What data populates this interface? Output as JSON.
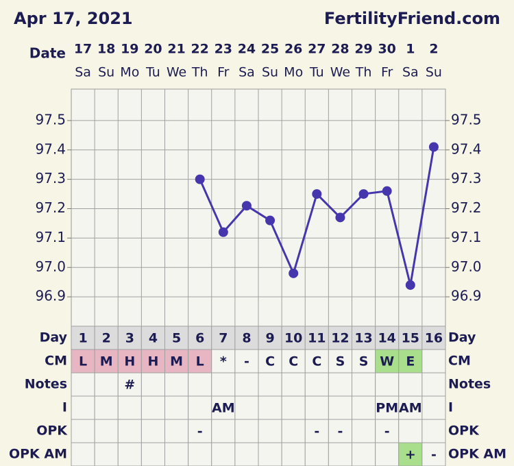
{
  "header": {
    "date": "Apr 17, 2021",
    "site": "FertilityFriend.com"
  },
  "chart_data": {
    "type": "line",
    "x_label": "Date",
    "categories": [
      "17",
      "18",
      "19",
      "20",
      "21",
      "22",
      "23",
      "24",
      "25",
      "26",
      "27",
      "28",
      "29",
      "30",
      "1",
      "2"
    ],
    "weekdays": [
      "Sa",
      "Su",
      "Mo",
      "Tu",
      "We",
      "Th",
      "Fr",
      "Sa",
      "Su",
      "Mo",
      "Tu",
      "We",
      "Th",
      "Fr",
      "Sa",
      "Su"
    ],
    "series": [
      {
        "color": "#4536ad",
        "values": [
          null,
          null,
          null,
          null,
          null,
          97.3,
          97.12,
          97.21,
          97.16,
          96.98,
          97.25,
          97.17,
          97.25,
          97.26,
          96.94,
          97.41
        ]
      }
    ],
    "ylim": [
      96.8,
      97.6
    ],
    "yticks": [
      96.9,
      {
        "value": 97,
        "label": "97.0"
      },
      97.1,
      97.2,
      97.3,
      97.4,
      97.5
    ],
    "grid": true
  },
  "rows": [
    {
      "label": "Day",
      "cells": [
        1,
        2,
        3,
        4,
        5,
        6,
        7,
        8,
        9,
        10,
        11,
        12,
        13,
        14,
        15,
        16
      ]
    },
    {
      "label": "CM",
      "cells": [
        "L",
        "M",
        "H",
        "H",
        "M",
        "L",
        "*",
        "-",
        "C",
        "C",
        "C",
        "S",
        "S",
        "W",
        "E",
        null
      ],
      "colors": [
        "#e8b5c3",
        "#e8b5c3",
        "#e8b5c3",
        "#e8b5c3",
        "#e8b5c3",
        "#e8b5c3",
        null,
        null,
        null,
        null,
        null,
        null,
        null,
        "#a8de8c",
        "#a8de8c",
        null
      ]
    },
    {
      "label": "Notes",
      "cells": [
        null,
        null,
        "#",
        null,
        null,
        null,
        null,
        null,
        null,
        null,
        null,
        null,
        null,
        null,
        null,
        null
      ]
    },
    {
      "label": "I",
      "cells": [
        null,
        null,
        null,
        null,
        null,
        null,
        "AM",
        null,
        null,
        null,
        null,
        null,
        null,
        "PM",
        "AM",
        null
      ]
    },
    {
      "label": "OPK",
      "cells": [
        null,
        null,
        null,
        null,
        null,
        "-",
        null,
        null,
        null,
        null,
        "-",
        "-",
        null,
        "-",
        null,
        null
      ]
    },
    {
      "label": "OPK AM",
      "cells": [
        null,
        null,
        null,
        null,
        null,
        null,
        null,
        null,
        null,
        null,
        null,
        null,
        null,
        null,
        "+",
        "-"
      ],
      "colors": [
        null,
        null,
        null,
        null,
        null,
        null,
        null,
        null,
        null,
        null,
        null,
        null,
        null,
        null,
        "#a8de8c",
        null
      ]
    }
  ]
}
